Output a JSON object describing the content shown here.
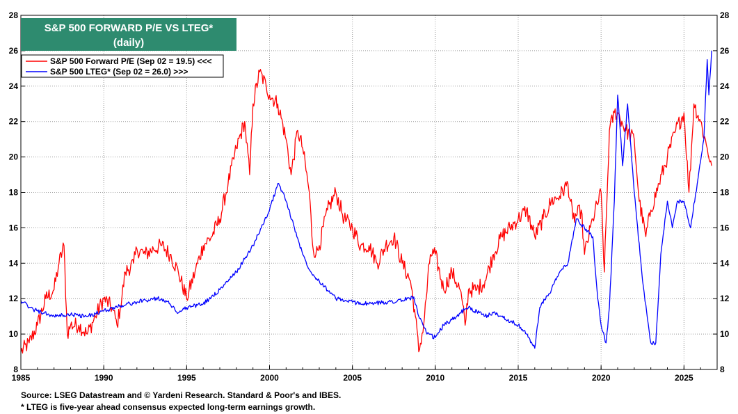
{
  "title": {
    "line1": "S&P 500 FORWARD P/E VS LTEG*",
    "line2": "(daily)"
  },
  "legend": [
    {
      "label": "S&P 500 Forward P/E (Sep 02 = 19.5) <<<",
      "color": "#ff0000"
    },
    {
      "label": "S&P 500 LTEG* (Sep 02 = 26.0) >>>",
      "color": "#0000ff"
    }
  ],
  "footnotes": {
    "source": "Source: LSEG Datastream and © Yardeni Research.  Standard & Poor's and IBES.",
    "note": "* LTEG is five-year ahead consensus expected long-term earnings growth."
  },
  "chart_data": {
    "type": "line",
    "title": "S&P 500 FORWARD P/E VS LTEG*",
    "xlim": [
      1985,
      2027
    ],
    "ylim": [
      8,
      28
    ],
    "x_ticks": [
      1985,
      1990,
      1995,
      2000,
      2005,
      2010,
      2015,
      2020,
      2025
    ],
    "y_ticks": [
      8,
      10,
      12,
      14,
      16,
      18,
      20,
      22,
      24,
      26,
      28
    ],
    "grid": true,
    "legend_position": "top-left",
    "series": [
      {
        "name": "S&P 500 Forward P/E (Sep 02 = 19.5) <<<",
        "axis": "left",
        "color": "#ff0000",
        "points": [
          [
            1985.0,
            9.0
          ],
          [
            1985.5,
            9.5
          ],
          [
            1986.0,
            10.5
          ],
          [
            1986.5,
            12.0
          ],
          [
            1987.0,
            12.5
          ],
          [
            1987.3,
            14.0
          ],
          [
            1987.6,
            15.0
          ],
          [
            1987.8,
            10.0
          ],
          [
            1988.0,
            10.5
          ],
          [
            1988.5,
            10.5
          ],
          [
            1989.0,
            10.0
          ],
          [
            1989.5,
            11.0
          ],
          [
            1990.0,
            12.0
          ],
          [
            1990.5,
            11.5
          ],
          [
            1990.8,
            10.5
          ],
          [
            1991.0,
            11.5
          ],
          [
            1991.3,
            13.5
          ],
          [
            1991.8,
            14.0
          ],
          [
            1992.0,
            14.8
          ],
          [
            1992.5,
            14.5
          ],
          [
            1993.0,
            14.8
          ],
          [
            1993.5,
            15.0
          ],
          [
            1994.0,
            14.5
          ],
          [
            1994.5,
            13.5
          ],
          [
            1995.0,
            12.0
          ],
          [
            1995.5,
            13.5
          ],
          [
            1996.0,
            15.0
          ],
          [
            1996.5,
            15.5
          ],
          [
            1997.0,
            16.5
          ],
          [
            1997.5,
            18.5
          ],
          [
            1998.0,
            20.5
          ],
          [
            1998.5,
            22.0
          ],
          [
            1998.8,
            19.0
          ],
          [
            1999.0,
            23.0
          ],
          [
            1999.4,
            24.8
          ],
          [
            1999.8,
            24.0
          ],
          [
            2000.0,
            23.5
          ],
          [
            2000.5,
            23.0
          ],
          [
            2001.0,
            21.0
          ],
          [
            2001.3,
            19.0
          ],
          [
            2001.7,
            21.5
          ],
          [
            2002.0,
            20.5
          ],
          [
            2002.4,
            18.0
          ],
          [
            2002.6,
            15.0
          ],
          [
            2002.8,
            14.5
          ],
          [
            2003.0,
            15.0
          ],
          [
            2003.5,
            17.0
          ],
          [
            2004.0,
            18.0
          ],
          [
            2004.5,
            16.5
          ],
          [
            2005.0,
            16.0
          ],
          [
            2005.5,
            15.0
          ],
          [
            2006.0,
            15.0
          ],
          [
            2006.5,
            14.0
          ],
          [
            2007.0,
            15.0
          ],
          [
            2007.5,
            15.5
          ],
          [
            2008.0,
            14.0
          ],
          [
            2008.5,
            13.0
          ],
          [
            2008.8,
            11.0
          ],
          [
            2009.0,
            9.0
          ],
          [
            2009.3,
            10.5
          ],
          [
            2009.7,
            14.5
          ],
          [
            2010.0,
            14.5
          ],
          [
            2010.5,
            12.5
          ],
          [
            2011.0,
            13.5
          ],
          [
            2011.5,
            12.5
          ],
          [
            2011.8,
            10.5
          ],
          [
            2012.0,
            12.5
          ],
          [
            2012.5,
            12.5
          ],
          [
            2013.0,
            13.0
          ],
          [
            2013.5,
            14.5
          ],
          [
            2014.0,
            15.5
          ],
          [
            2014.5,
            16.0
          ],
          [
            2015.0,
            16.5
          ],
          [
            2015.5,
            17.0
          ],
          [
            2016.0,
            15.5
          ],
          [
            2016.5,
            16.5
          ],
          [
            2017.0,
            17.5
          ],
          [
            2017.5,
            17.8
          ],
          [
            2018.0,
            18.5
          ],
          [
            2018.3,
            16.5
          ],
          [
            2018.8,
            17.0
          ],
          [
            2019.0,
            14.5
          ],
          [
            2019.5,
            16.5
          ],
          [
            2020.0,
            18.0
          ],
          [
            2020.2,
            13.5
          ],
          [
            2020.5,
            21.5
          ],
          [
            2020.8,
            22.5
          ],
          [
            2021.0,
            22.5
          ],
          [
            2021.5,
            21.5
          ],
          [
            2022.0,
            21.0
          ],
          [
            2022.3,
            17.5
          ],
          [
            2022.7,
            15.5
          ],
          [
            2023.0,
            17.0
          ],
          [
            2023.5,
            18.5
          ],
          [
            2024.0,
            20.0
          ],
          [
            2024.5,
            21.5
          ],
          [
            2025.0,
            22.5
          ],
          [
            2025.3,
            18.0
          ],
          [
            2025.6,
            23.0
          ],
          [
            2026.0,
            22.0
          ],
          [
            2026.4,
            20.5
          ],
          [
            2026.67,
            19.5
          ]
        ]
      },
      {
        "name": "S&P 500 LTEG* (Sep 02 = 26.0) >>>",
        "axis": "right",
        "color": "#0000ff",
        "points": [
          [
            1985.0,
            11.9
          ],
          [
            1985.5,
            11.5
          ],
          [
            1986.0,
            11.3
          ],
          [
            1987.0,
            11.0
          ],
          [
            1988.0,
            11.1
          ],
          [
            1989.0,
            11.0
          ],
          [
            1990.0,
            11.3
          ],
          [
            1991.0,
            11.6
          ],
          [
            1992.0,
            11.8
          ],
          [
            1993.0,
            12.0
          ],
          [
            1993.5,
            12.0
          ],
          [
            1994.0,
            11.7
          ],
          [
            1994.5,
            11.2
          ],
          [
            1995.0,
            11.5
          ],
          [
            1996.0,
            11.7
          ],
          [
            1997.0,
            12.5
          ],
          [
            1998.0,
            13.5
          ],
          [
            1999.0,
            15.0
          ],
          [
            1999.5,
            16.0
          ],
          [
            2000.0,
            17.0
          ],
          [
            2000.5,
            18.5
          ],
          [
            2000.8,
            18.0
          ],
          [
            2001.0,
            17.5
          ],
          [
            2001.5,
            16.0
          ],
          [
            2002.0,
            14.5
          ],
          [
            2002.5,
            13.5
          ],
          [
            2003.0,
            13.0
          ],
          [
            2004.0,
            12.0
          ],
          [
            2005.0,
            11.8
          ],
          [
            2006.0,
            11.7
          ],
          [
            2007.0,
            11.8
          ],
          [
            2008.0,
            11.9
          ],
          [
            2008.7,
            12.1
          ],
          [
            2009.0,
            11.0
          ],
          [
            2009.5,
            10.0
          ],
          [
            2010.0,
            9.8
          ],
          [
            2010.5,
            10.5
          ],
          [
            2011.0,
            10.8
          ],
          [
            2011.5,
            11.2
          ],
          [
            2012.0,
            11.5
          ],
          [
            2013.0,
            11.0
          ],
          [
            2013.5,
            11.2
          ],
          [
            2014.0,
            11.0
          ],
          [
            2015.0,
            10.5
          ],
          [
            2015.5,
            10.0
          ],
          [
            2016.0,
            9.2
          ],
          [
            2016.3,
            11.5
          ],
          [
            2017.0,
            12.5
          ],
          [
            2017.5,
            13.5
          ],
          [
            2018.0,
            14.0
          ],
          [
            2018.5,
            16.5
          ],
          [
            2019.0,
            16.0
          ],
          [
            2019.5,
            15.5
          ],
          [
            2019.8,
            12.0
          ],
          [
            2020.0,
            10.5
          ],
          [
            2020.3,
            9.5
          ],
          [
            2020.5,
            11.5
          ],
          [
            2020.8,
            17.5
          ],
          [
            2021.0,
            23.5
          ],
          [
            2021.3,
            19.5
          ],
          [
            2021.6,
            23.0
          ],
          [
            2022.0,
            18.0
          ],
          [
            2022.5,
            13.0
          ],
          [
            2023.0,
            9.5
          ],
          [
            2023.3,
            9.5
          ],
          [
            2023.6,
            14.5
          ],
          [
            2024.0,
            17.5
          ],
          [
            2024.3,
            16.0
          ],
          [
            2024.6,
            17.5
          ],
          [
            2025.0,
            17.5
          ],
          [
            2025.4,
            16.0
          ],
          [
            2025.8,
            18.5
          ],
          [
            2026.2,
            21.0
          ],
          [
            2026.4,
            25.5
          ],
          [
            2026.5,
            23.5
          ],
          [
            2026.67,
            26.0
          ]
        ]
      }
    ]
  }
}
